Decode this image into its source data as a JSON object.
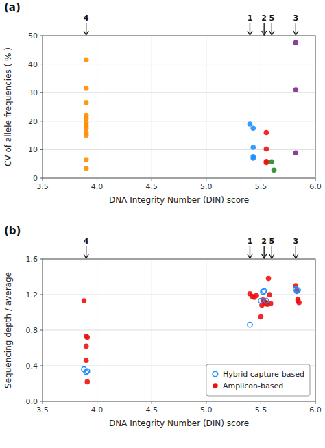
{
  "chart_data": [
    {
      "type": "scatter",
      "title": "(a)",
      "xlabel": "DNA Integrity Number (DIN) score",
      "ylabel": "CV of allele frequencies ( % )",
      "xlim": [
        3.5,
        6.0
      ],
      "ylim": [
        0,
        50
      ],
      "xticks": [
        3.5,
        {
          "value": 4.0,
          "label": "4.0"
        },
        4.5,
        {
          "value": 5.0,
          "label": "5.0"
        },
        5.5,
        {
          "value": 6.0,
          "label": "6.0"
        }
      ],
      "yticks": [
        0,
        10,
        20,
        30,
        40,
        50
      ],
      "grid": true,
      "annotations": [
        {
          "label": "4",
          "x": 3.9
        },
        {
          "label": "1",
          "x": 5.4
        },
        {
          "label": "2",
          "x": 5.53
        },
        {
          "label": "5",
          "x": 5.6
        },
        {
          "label": "3",
          "x": 5.82
        }
      ],
      "series": [
        {
          "color": "#FF8C00",
          "marker": "circle",
          "x": [
            3.9,
            3.9,
            3.9,
            3.9,
            3.9,
            3.9,
            3.9,
            3.9,
            3.9,
            3.9,
            3.9,
            3.9
          ],
          "values": [
            41.5,
            31.5,
            26.5,
            22.0,
            21.0,
            19.5,
            18.5,
            17.5,
            16.0,
            15.0,
            6.5,
            3.5
          ]
        },
        {
          "color": "#1E90FF",
          "marker": "circle",
          "x": [
            5.4,
            5.43,
            5.43,
            5.43,
            5.43
          ],
          "values": [
            19.0,
            17.5,
            10.8,
            7.5,
            7.0
          ]
        },
        {
          "color": "#EE1111",
          "marker": "circle",
          "x": [
            5.55,
            5.55,
            5.55,
            5.55
          ],
          "values": [
            16.0,
            10.2,
            5.8,
            5.4
          ]
        },
        {
          "color": "#228B22",
          "marker": "circle",
          "x": [
            5.6,
            5.62
          ],
          "values": [
            5.7,
            2.8
          ]
        },
        {
          "color": "#7B2D8B",
          "marker": "circle",
          "x": [
            5.82,
            5.82,
            5.82
          ],
          "values": [
            47.5,
            31.0,
            8.8
          ]
        }
      ]
    },
    {
      "type": "scatter",
      "title": "(b)",
      "xlabel": "DNA Integrity Number (DIN) score",
      "ylabel": "Sequencing depth / average",
      "xlim": [
        3.5,
        6.0
      ],
      "ylim": [
        0,
        1.6
      ],
      "xticks": [
        3.5,
        {
          "value": 4.0,
          "label": "4.0"
        },
        4.5,
        {
          "value": 5.0,
          "label": "5.0"
        },
        5.5,
        {
          "value": 6.0,
          "label": "6.0"
        }
      ],
      "yticks": [
        {
          "value": 0,
          "label": "0.0"
        },
        0.4,
        0.8,
        1.2,
        1.6
      ],
      "grid": true,
      "legend": "lower right",
      "annotations": [
        {
          "label": "4",
          "x": 3.9
        },
        {
          "label": "1",
          "x": 5.4
        },
        {
          "label": "2",
          "x": 5.53
        },
        {
          "label": "5",
          "x": 5.6
        },
        {
          "label": "3",
          "x": 5.82
        }
      ],
      "series": [
        {
          "name": "Hybrid capture-based",
          "color": "#1E90FF",
          "marker": "open-circle",
          "x": [
            3.88,
            3.9,
            3.91,
            5.4,
            5.5,
            5.52,
            5.53,
            5.55,
            5.82,
            5.83,
            5.84
          ],
          "values": [
            0.36,
            0.33,
            0.34,
            0.86,
            1.13,
            1.23,
            1.24,
            1.13,
            1.26,
            1.24,
            1.25
          ]
        },
        {
          "name": "Amplicon-based",
          "color": "#EE1111",
          "marker": "circle",
          "x": [
            3.88,
            3.9,
            3.9,
            3.9,
            3.91,
            3.91,
            5.4,
            5.42,
            5.44,
            5.46,
            5.5,
            5.51,
            5.52,
            5.53,
            5.54,
            5.55,
            5.56,
            5.57,
            5.58,
            5.59,
            5.82,
            5.83,
            5.84,
            5.84,
            5.85
          ],
          "values": [
            1.13,
            0.73,
            0.62,
            0.46,
            0.72,
            0.22,
            1.21,
            1.18,
            1.17,
            1.19,
            0.95,
            1.08,
            1.14,
            1.12,
            1.1,
            1.11,
            1.09,
            1.38,
            1.2,
            1.1,
            1.3,
            1.25,
            1.15,
            1.13,
            1.11
          ]
        }
      ]
    }
  ]
}
